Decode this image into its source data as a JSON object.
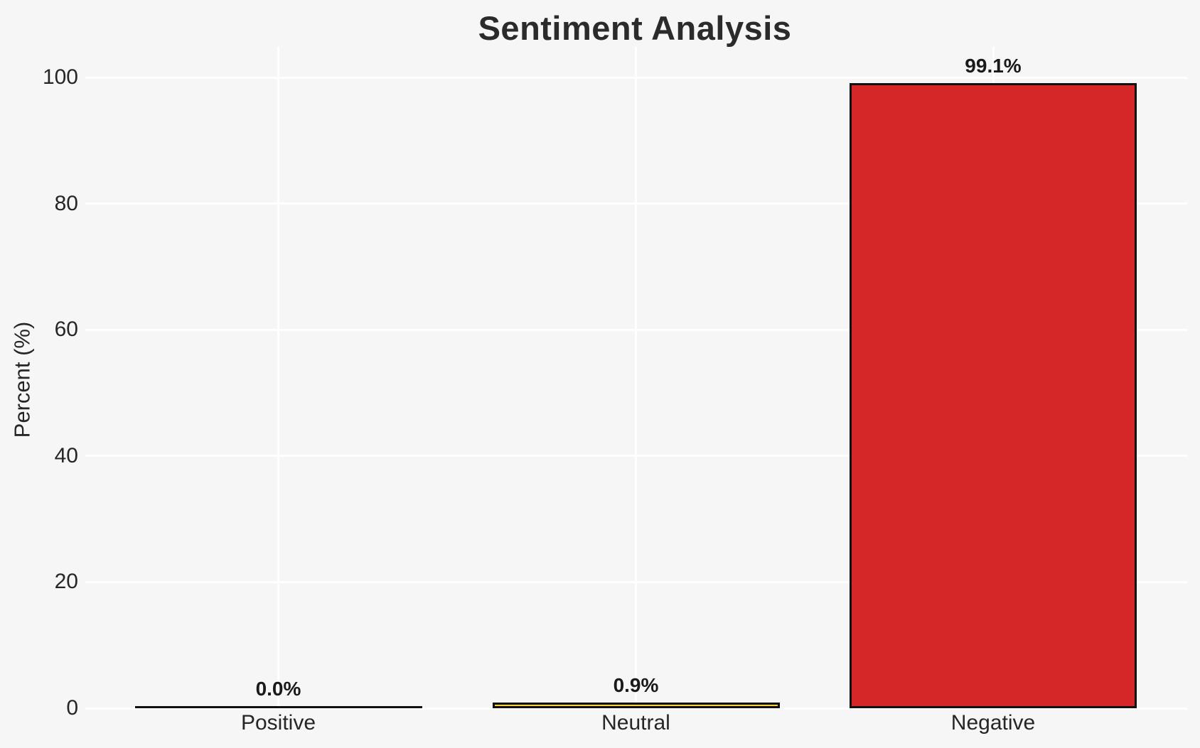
{
  "chart_data": {
    "type": "bar",
    "title": "Sentiment Analysis",
    "xlabel": "",
    "ylabel": "Percent (%)",
    "categories": [
      "Positive",
      "Neutral",
      "Negative"
    ],
    "values": [
      0.0,
      0.9,
      99.1
    ],
    "value_labels": [
      "0.0%",
      "0.9%",
      "99.1%"
    ],
    "bar_colors": [
      "none",
      "#f5d23c",
      "#d62728"
    ],
    "bar_edge_color": "#111111",
    "ylim": [
      0,
      105
    ],
    "yticks": [
      0,
      20,
      40,
      60,
      80,
      100
    ],
    "grid": true,
    "gridline_color": "#ffffff",
    "background_color": "#f6f6f7",
    "text_color": "#262626",
    "legend": "none"
  }
}
